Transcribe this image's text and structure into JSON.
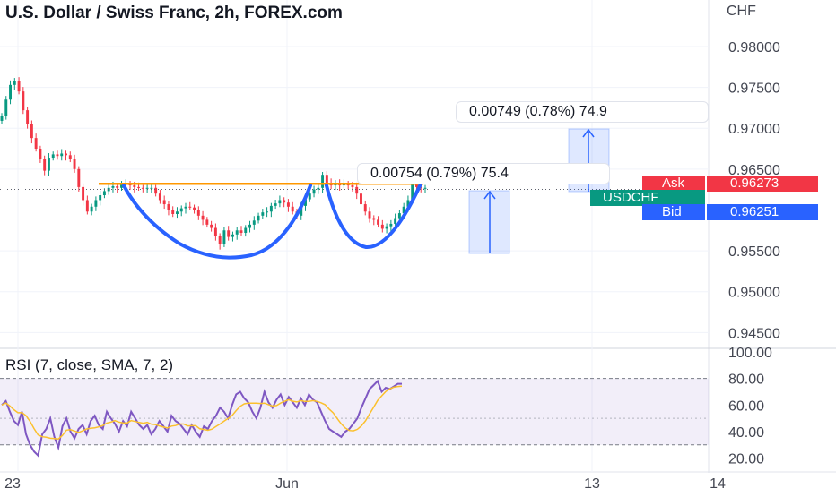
{
  "header": {
    "title": "U.S. Dollar / Swiss Franc, 2h, FOREX.com",
    "currency": "CHF",
    "rsi_title": "RSI (7, close, SMA, 7, 2)"
  },
  "price_axis": {
    "ticks": [
      "0.98000",
      "0.97500",
      "0.97000",
      "0.96500",
      "0.96000",
      "0.95500",
      "0.95000",
      "0.94500"
    ]
  },
  "rsi_axis": {
    "ticks": [
      "100.00",
      "80.00",
      "60.00",
      "40.00",
      "20.00"
    ]
  },
  "time_axis": {
    "ticks": [
      "23",
      "Jun",
      "13",
      "14"
    ]
  },
  "quotes": {
    "ask_label": "Ask",
    "ask_value": "0.96273",
    "symbol": "USDCHF",
    "bid_label": "Bid",
    "bid_value": "0.96251"
  },
  "measures": {
    "small": "0.00754 (0.79%) 75.4",
    "large": "0.00749 (0.78%) 74.9"
  },
  "colors": {
    "up": "#089981",
    "down": "#f23645",
    "pattern": "#2962ff",
    "neckline": "#ff9800",
    "rsi": "#7e57c2",
    "rsi_ma": "#fbc02d"
  },
  "chart_data": [
    {
      "type": "candlestick",
      "title": "U.S. Dollar / Swiss Franc, 2h, FOREX.com",
      "ylabel": "CHF",
      "ylim": [
        0.9435,
        0.9835
      ],
      "x_ticks": [
        "23",
        "Jun",
        "13",
        "14"
      ],
      "price_series": {
        "name": "USDCHF",
        "values": [
          0.9715,
          0.9735,
          0.9753,
          0.9758,
          0.9745,
          0.9722,
          0.9705,
          0.9688,
          0.9675,
          0.9662,
          0.9648,
          0.9664,
          0.9668,
          0.9666,
          0.9669,
          0.9667,
          0.9662,
          0.965,
          0.9628,
          0.9612,
          0.9598,
          0.9604,
          0.9612,
          0.9618,
          0.9623,
          0.9627,
          0.9629,
          0.9627,
          0.9631,
          0.9632,
          0.963,
          0.9628,
          0.9627,
          0.9626,
          0.9627,
          0.9627,
          0.962,
          0.9612,
          0.9607,
          0.96,
          0.9595,
          0.9598,
          0.9602,
          0.9604,
          0.9603,
          0.96,
          0.9593,
          0.9588,
          0.9582,
          0.9578,
          0.9568,
          0.9558,
          0.9575,
          0.9567,
          0.957,
          0.9575,
          0.9572,
          0.9578,
          0.9582,
          0.9587,
          0.9593,
          0.9597,
          0.9598,
          0.9605,
          0.9608,
          0.9612,
          0.9609,
          0.9604,
          0.9598,
          0.9593,
          0.9605,
          0.9613,
          0.962,
          0.9625,
          0.9627,
          0.9643,
          0.9633,
          0.963,
          0.9633,
          0.963,
          0.9632,
          0.963,
          0.9628,
          0.962,
          0.9607,
          0.9598,
          0.959,
          0.9588,
          0.9582,
          0.9577,
          0.958,
          0.9583,
          0.959,
          0.9596,
          0.9604,
          0.9612,
          0.9636,
          0.9628,
          0.9627,
          0.9627
        ]
      },
      "bid": 0.96251,
      "ask": 0.96273,
      "annotations": {
        "neckline_price": 0.9632,
        "measure_small": "0.00754 (0.79%) 75.4",
        "measure_large": "0.00749 (0.78%) 74.9"
      }
    },
    {
      "type": "line",
      "title": "RSI (7, close, SMA, 7, 2)",
      "ylim": [
        13,
        100
      ],
      "y_ticks": [
        100,
        80,
        60,
        40,
        20
      ],
      "band": [
        30,
        80
      ],
      "series": [
        {
          "name": "RSI",
          "values": [
            60,
            63,
            55,
            48,
            45,
            55,
            38,
            30,
            25,
            22,
            38,
            42,
            50,
            36,
            28,
            44,
            50,
            40,
            35,
            42,
            45,
            38,
            48,
            52,
            45,
            42,
            55,
            50,
            46,
            40,
            48,
            44,
            55,
            50,
            45,
            42,
            45,
            38,
            42,
            48,
            44,
            40,
            52,
            48,
            46,
            42,
            38,
            45,
            40,
            36,
            44,
            42,
            48,
            52,
            58,
            55,
            50,
            60,
            68,
            70,
            65,
            62,
            55,
            50,
            58,
            70,
            62,
            58,
            64,
            68,
            60,
            66,
            62,
            58,
            65,
            60,
            68,
            64,
            62,
            55,
            48,
            42,
            40,
            38,
            36,
            40,
            42,
            46,
            50,
            58,
            65,
            72,
            75,
            78,
            70,
            73,
            72,
            74,
            76,
            76
          ]
        }
      ]
    }
  ]
}
